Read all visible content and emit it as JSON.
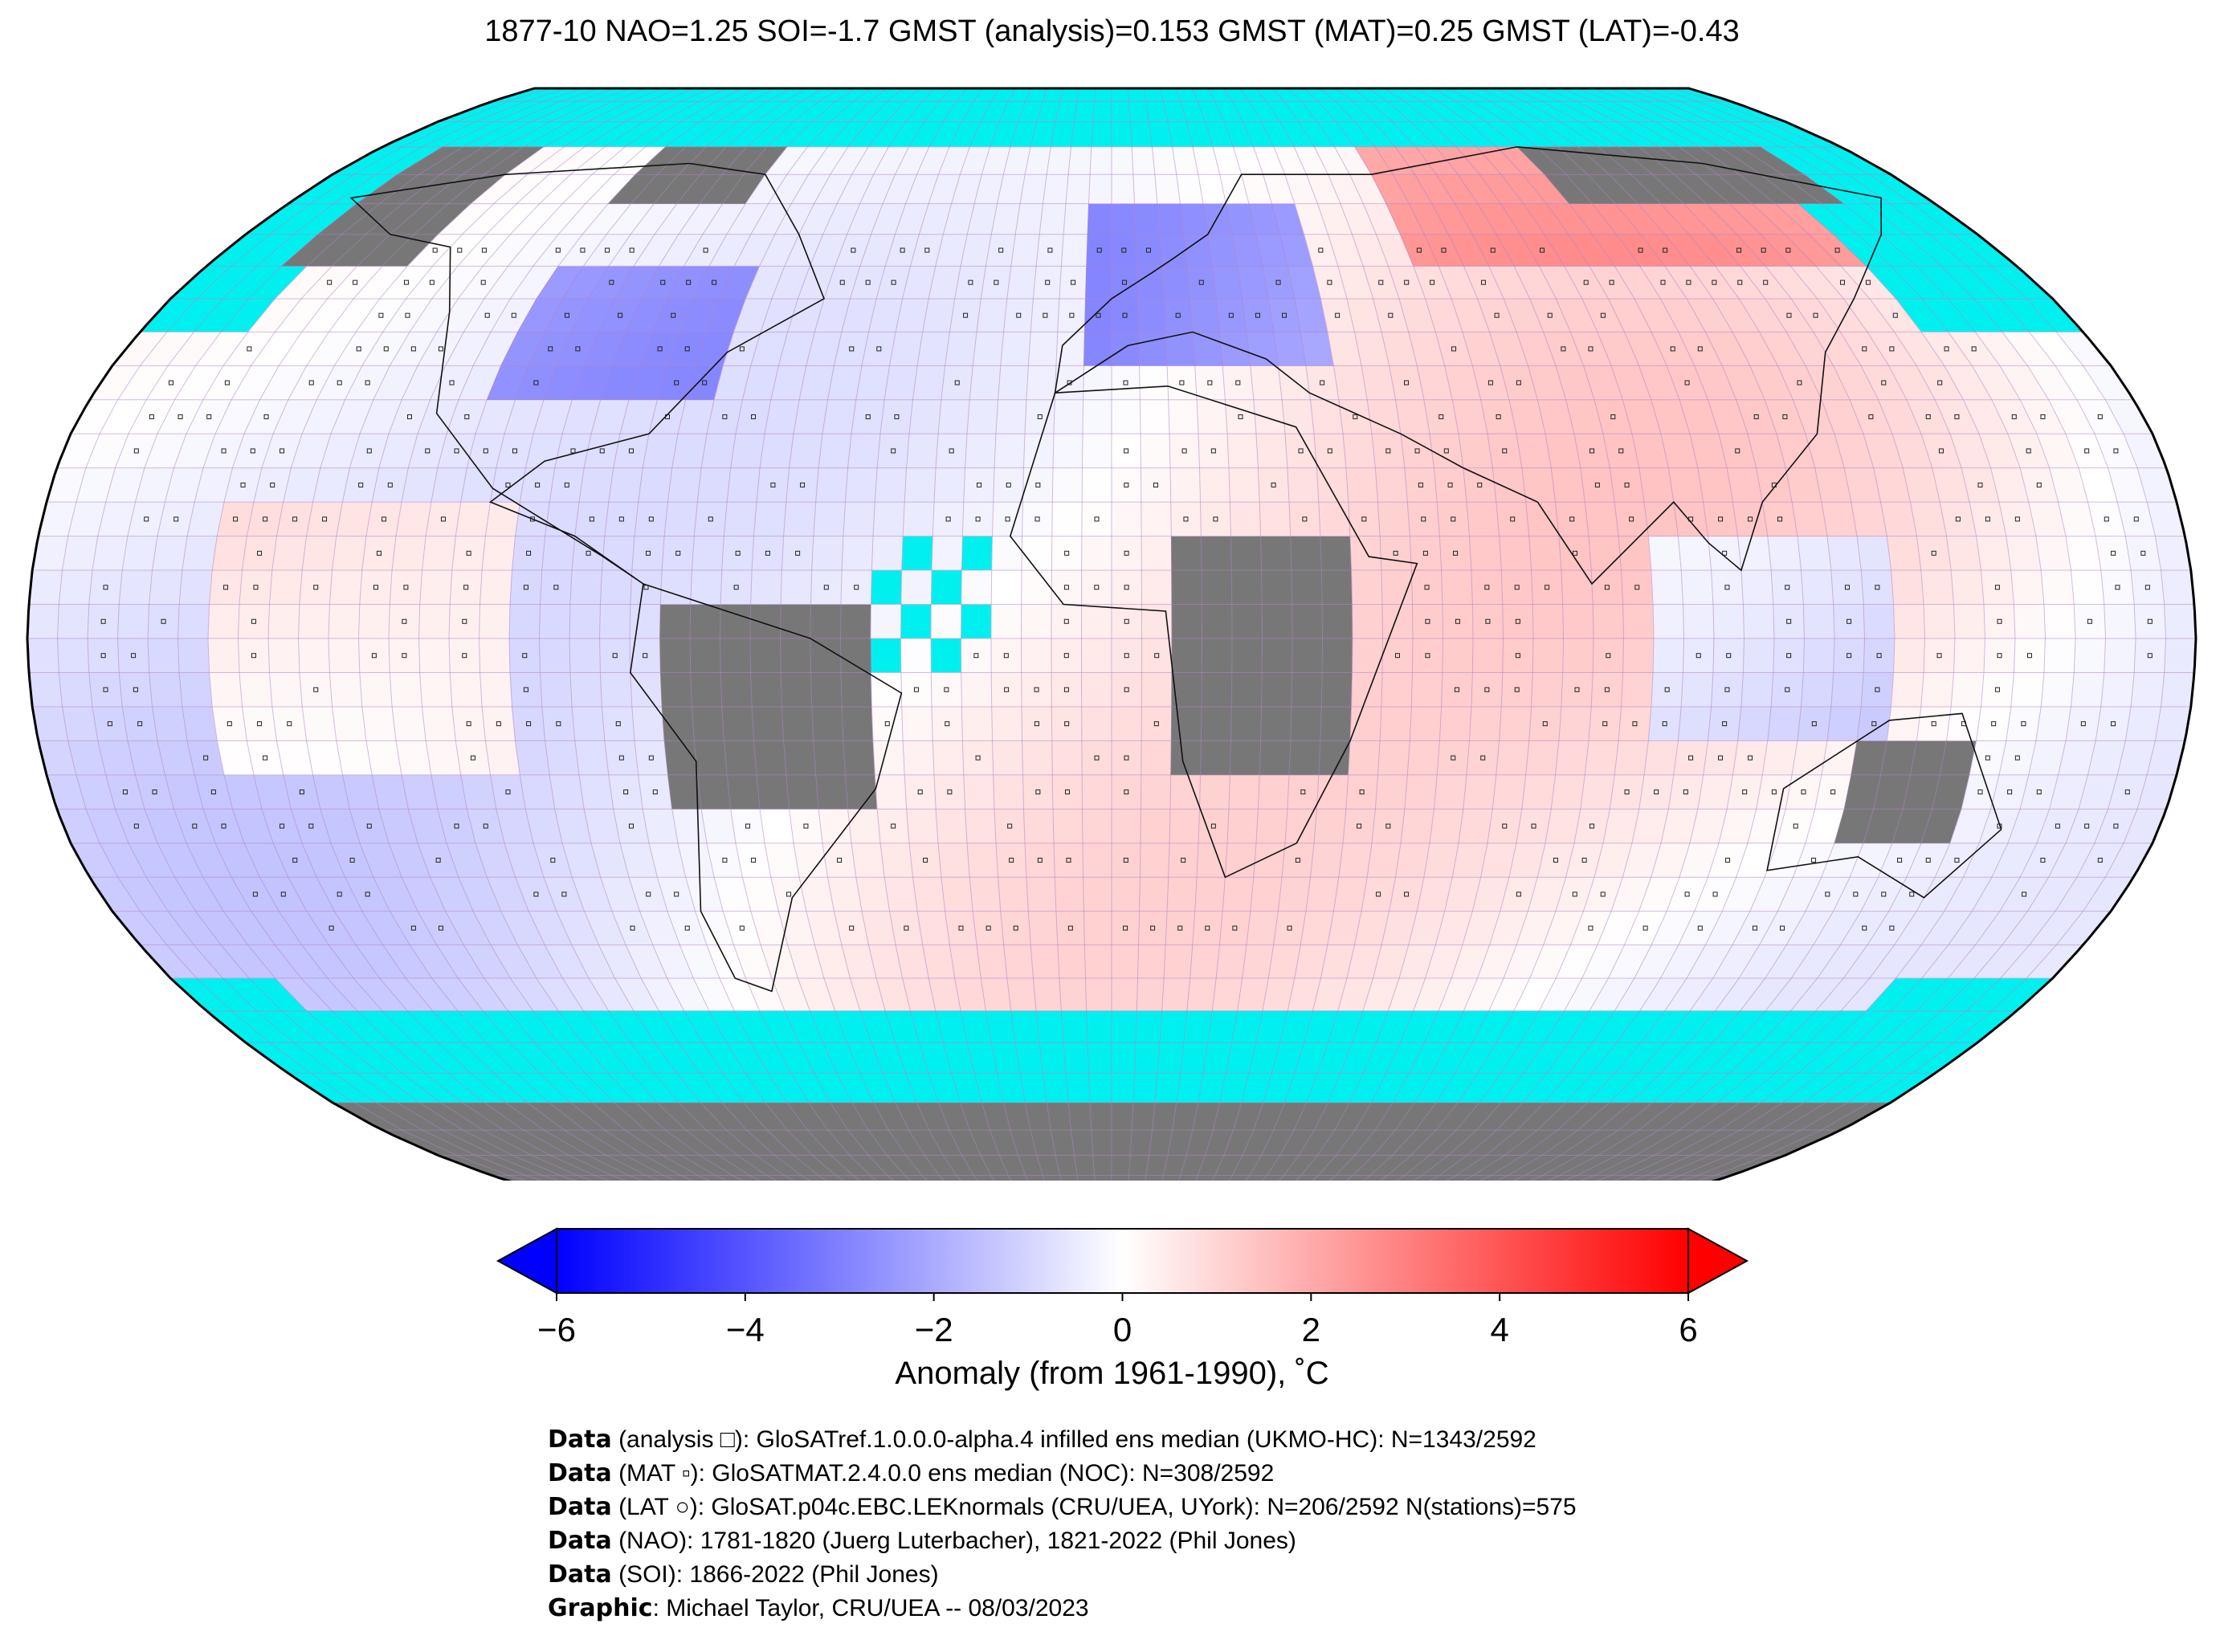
{
  "title": "1877-10 NAO=1.25 SOI=-1.7 GMST (analysis)=0.153 GMST (MAT)=0.25 GMST (LAT)=-0.43",
  "colorbar": {
    "label": "Anomaly (from 1961-1990), ˚C",
    "ticks": [
      "−6",
      "−4",
      "−2",
      "0",
      "2",
      "4",
      "6"
    ],
    "range": [
      -6,
      6
    ],
    "colors": {
      "low": "#0000ff",
      "mid": "#ffffff",
      "high": "#ff0000"
    }
  },
  "map": {
    "projection": "Robinson",
    "ocean_mask_color": "#00f0f0",
    "missing_land_color": "#777777",
    "grid_color": "#b085c5",
    "grid": "5° x 5°"
  },
  "footer": [
    {
      "bold": "Data",
      "text": " (analysis □): GloSATref.1.0.0.0-alpha.4 infilled ens median (UKMO-HC): N=1343/2592"
    },
    {
      "bold": "Data",
      "text": " (MAT ▫): GloSATMAT.2.4.0.0 ens median (NOC): N=308/2592"
    },
    {
      "bold": "Data",
      "text": " (LAT ○): GloSAT.p04c.EBC.LEKnormals (CRU/UEA, UYork): N=206/2592 N(stations)=575"
    },
    {
      "bold": "Data",
      "text": " (NAO): 1781-1820 (Juerg Luterbacher), 1821-2022 (Phil Jones)"
    },
    {
      "bold": "Data",
      "text": " (SOI): 1866-2022 (Phil Jones)"
    },
    {
      "bold": "Graphic",
      "text": ": Michael Taylor, CRU/UEA -- 08/03/2023"
    }
  ]
}
